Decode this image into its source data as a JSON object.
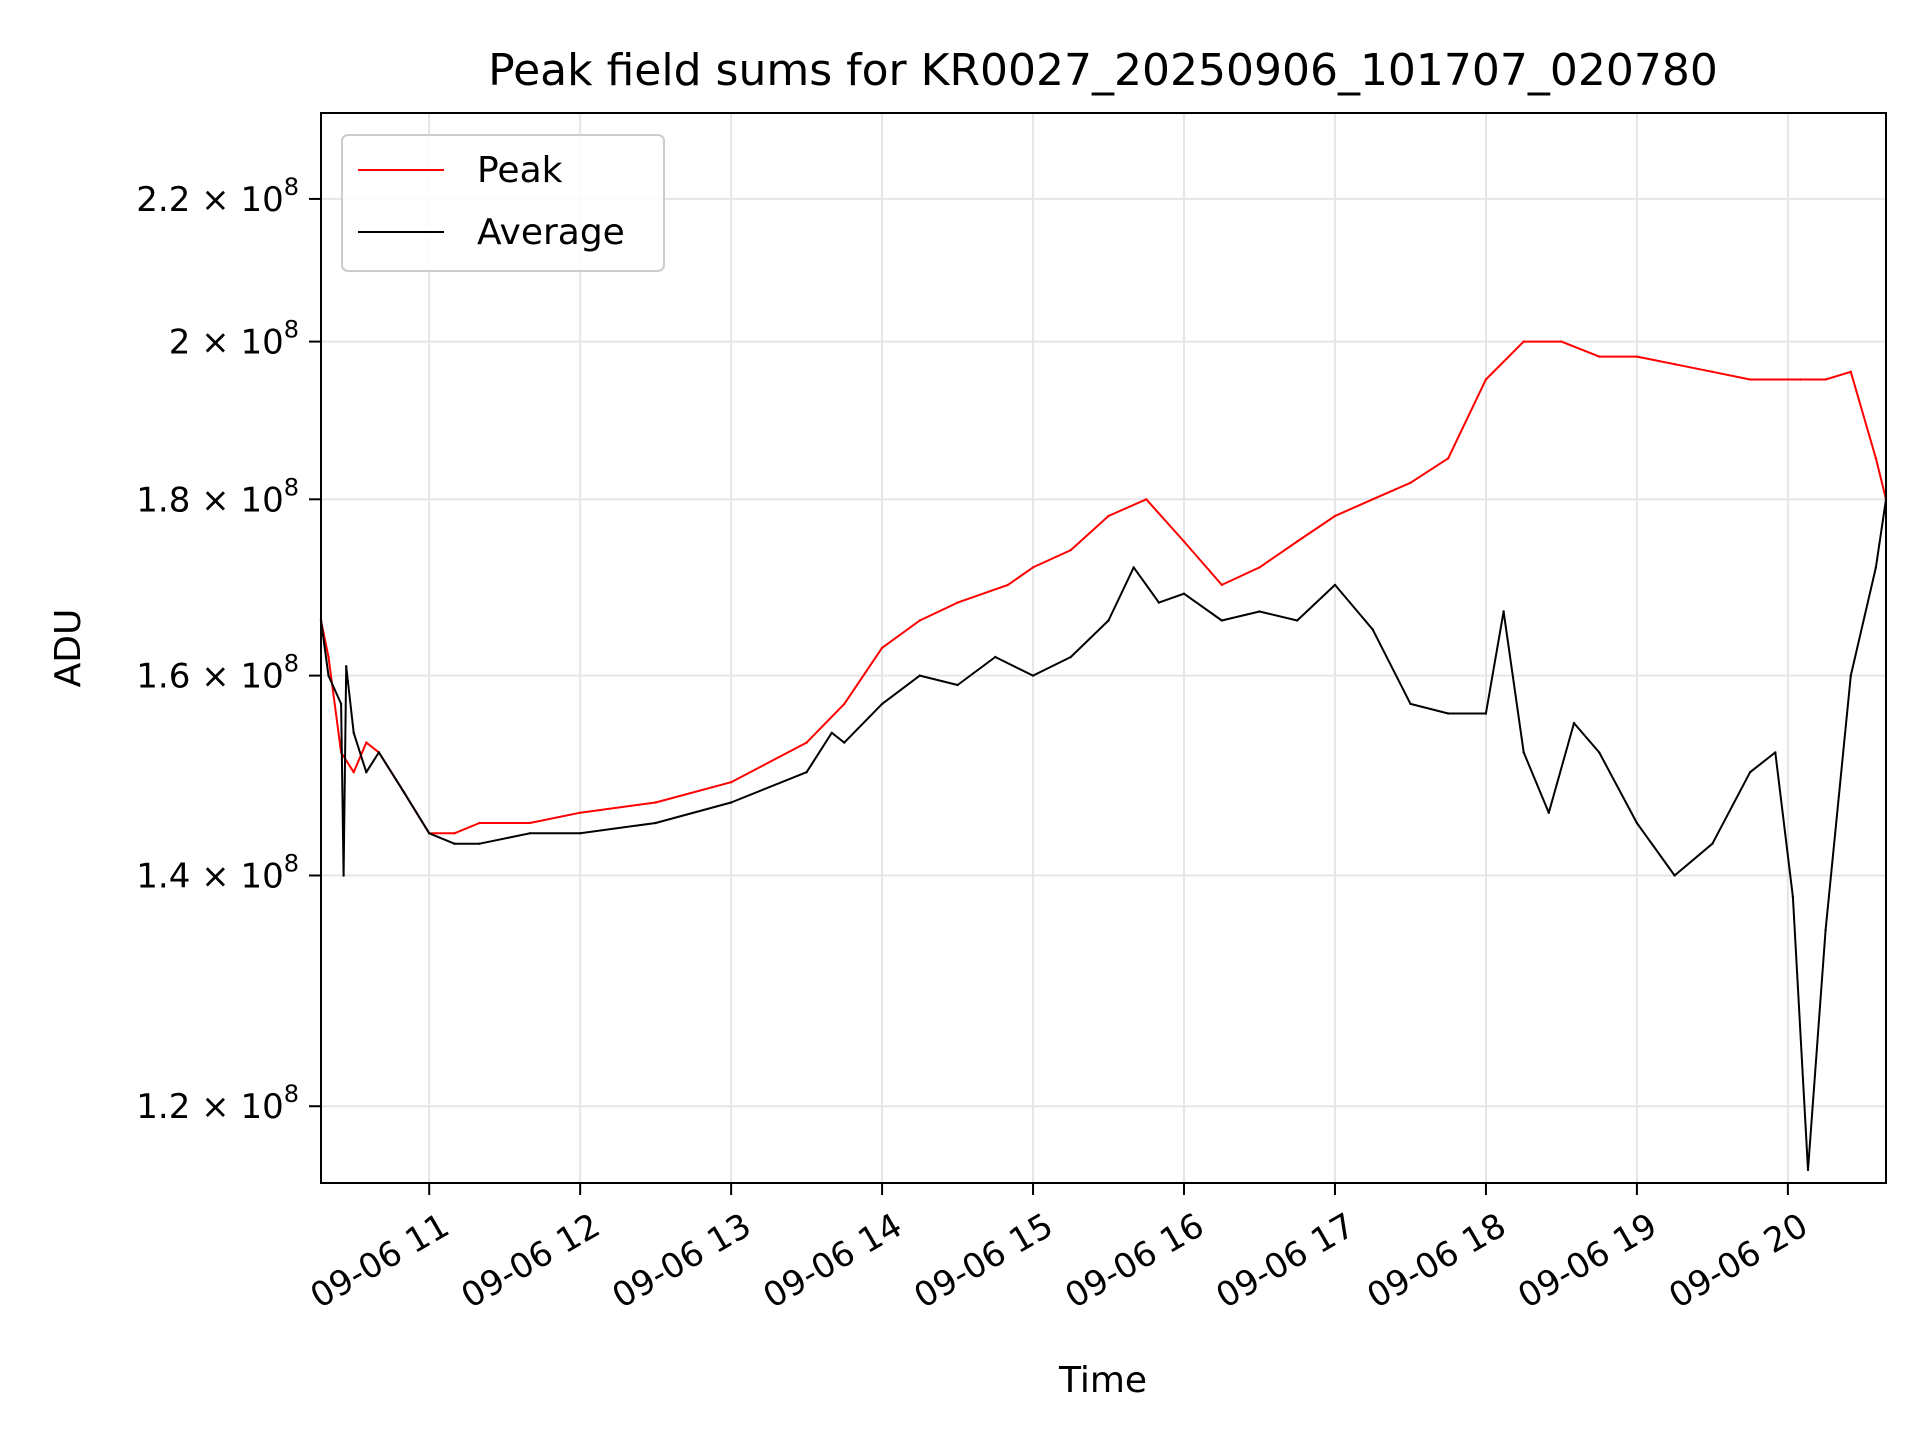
{
  "chart_data": {
    "type": "line",
    "title": "Peak field sums for KR0027_20250906_101707_020780",
    "xlabel": "Time",
    "ylabel": "ADU",
    "yscale": "log",
    "grid": true,
    "legend_position": "top-left",
    "xlim": [
      "2025-09-06 10:17",
      "2025-09-06 20:39"
    ],
    "ylim": [
      114000000,
      233000000
    ],
    "x_ticks": [
      {
        "time": "2025-09-06 11:00",
        "label": "09-06 11"
      },
      {
        "time": "2025-09-06 12:00",
        "label": "09-06 12"
      },
      {
        "time": "2025-09-06 13:00",
        "label": "09-06 13"
      },
      {
        "time": "2025-09-06 14:00",
        "label": "09-06 14"
      },
      {
        "time": "2025-09-06 15:00",
        "label": "09-06 15"
      },
      {
        "time": "2025-09-06 16:00",
        "label": "09-06 16"
      },
      {
        "time": "2025-09-06 17:00",
        "label": "09-06 17"
      },
      {
        "time": "2025-09-06 18:00",
        "label": "09-06 18"
      },
      {
        "time": "2025-09-06 19:00",
        "label": "09-06 19"
      },
      {
        "time": "2025-09-06 20:00",
        "label": "09-06 20"
      }
    ],
    "y_ticks": [
      {
        "value": 120000000,
        "mantissa": "1.2",
        "base": "10",
        "exp": "8"
      },
      {
        "value": 140000000,
        "mantissa": "1.4",
        "base": "10",
        "exp": "8"
      },
      {
        "value": 160000000,
        "mantissa": "1.6",
        "base": "10",
        "exp": "8"
      },
      {
        "value": 180000000,
        "mantissa": "1.8",
        "base": "10",
        "exp": "8"
      },
      {
        "value": 200000000,
        "mantissa": "2",
        "base": "10",
        "exp": "8"
      },
      {
        "value": 220000000,
        "mantissa": "2.2",
        "base": "10",
        "exp": "8"
      }
    ],
    "series": [
      {
        "name": "Peak",
        "color": "#ff0000",
        "x": [
          "2025-09-06 10:17",
          "2025-09-06 10:20",
          "2025-09-06 10:25",
          "2025-09-06 10:30",
          "2025-09-06 10:35",
          "2025-09-06 10:40",
          "2025-09-06 10:50",
          "2025-09-06 11:00",
          "2025-09-06 11:10",
          "2025-09-06 11:20",
          "2025-09-06 11:40",
          "2025-09-06 12:00",
          "2025-09-06 12:30",
          "2025-09-06 13:00",
          "2025-09-06 13:30",
          "2025-09-06 13:45",
          "2025-09-06 14:00",
          "2025-09-06 14:15",
          "2025-09-06 14:30",
          "2025-09-06 14:50",
          "2025-09-06 15:00",
          "2025-09-06 15:15",
          "2025-09-06 15:30",
          "2025-09-06 15:45",
          "2025-09-06 16:00",
          "2025-09-06 16:15",
          "2025-09-06 16:30",
          "2025-09-06 16:45",
          "2025-09-06 17:00",
          "2025-09-06 17:15",
          "2025-09-06 17:30",
          "2025-09-06 17:45",
          "2025-09-06 18:00",
          "2025-09-06 18:15",
          "2025-09-06 18:30",
          "2025-09-06 18:45",
          "2025-09-06 19:00",
          "2025-09-06 19:15",
          "2025-09-06 19:30",
          "2025-09-06 19:45",
          "2025-09-06 20:00",
          "2025-09-06 20:05",
          "2025-09-06 20:15",
          "2025-09-06 20:25",
          "2025-09-06 20:35",
          "2025-09-06 20:39"
        ],
        "values": [
          166000000,
          162000000,
          152000000,
          150000000,
          153000000,
          152000000,
          148000000,
          144000000,
          144000000,
          145000000,
          145000000,
          146000000,
          147000000,
          149000000,
          153000000,
          157000000,
          163000000,
          166000000,
          168000000,
          170000000,
          172000000,
          174000000,
          178000000,
          180000000,
          175000000,
          170000000,
          172000000,
          175000000,
          178000000,
          180000000,
          182000000,
          185000000,
          195000000,
          200000000,
          200000000,
          198000000,
          198000000,
          197000000,
          196000000,
          195000000,
          195000000,
          195000000,
          195000000,
          196000000,
          185000000,
          180000000
        ]
      },
      {
        "name": "Average",
        "color": "#000000",
        "x": [
          "2025-09-06 10:17",
          "2025-09-06 10:20",
          "2025-09-06 10:25",
          "2025-09-06 10:26",
          "2025-09-06 10:27",
          "2025-09-06 10:30",
          "2025-09-06 10:35",
          "2025-09-06 10:40",
          "2025-09-06 10:50",
          "2025-09-06 11:00",
          "2025-09-06 11:10",
          "2025-09-06 11:20",
          "2025-09-06 11:40",
          "2025-09-06 12:00",
          "2025-09-06 12:30",
          "2025-09-06 13:00",
          "2025-09-06 13:30",
          "2025-09-06 13:40",
          "2025-09-06 13:45",
          "2025-09-06 14:00",
          "2025-09-06 14:15",
          "2025-09-06 14:30",
          "2025-09-06 14:45",
          "2025-09-06 15:00",
          "2025-09-06 15:15",
          "2025-09-06 15:30",
          "2025-09-06 15:40",
          "2025-09-06 15:50",
          "2025-09-06 16:00",
          "2025-09-06 16:15",
          "2025-09-06 16:30",
          "2025-09-06 16:45",
          "2025-09-06 17:00",
          "2025-09-06 17:15",
          "2025-09-06 17:30",
          "2025-09-06 17:45",
          "2025-09-06 18:00",
          "2025-09-06 18:07",
          "2025-09-06 18:15",
          "2025-09-06 18:25",
          "2025-09-06 18:35",
          "2025-09-06 18:45",
          "2025-09-06 19:00",
          "2025-09-06 19:15",
          "2025-09-06 19:30",
          "2025-09-06 19:45",
          "2025-09-06 19:55",
          "2025-09-06 20:02",
          "2025-09-06 20:08",
          "2025-09-06 20:15",
          "2025-09-06 20:25",
          "2025-09-06 20:35",
          "2025-09-06 20:39"
        ],
        "values": [
          166000000,
          160000000,
          157000000,
          140000000,
          161000000,
          154000000,
          150000000,
          152000000,
          148000000,
          144000000,
          143000000,
          143000000,
          144000000,
          144000000,
          145000000,
          147000000,
          150000000,
          154000000,
          153000000,
          157000000,
          160000000,
          159000000,
          162000000,
          160000000,
          162000000,
          166000000,
          172000000,
          168000000,
          169000000,
          166000000,
          167000000,
          166000000,
          170000000,
          165000000,
          157000000,
          156000000,
          156000000,
          167000000,
          152000000,
          146000000,
          155000000,
          152000000,
          145000000,
          140000000,
          143000000,
          150000000,
          152000000,
          138000000,
          115000000,
          135000000,
          160000000,
          172000000,
          180000000
        ]
      }
    ]
  }
}
